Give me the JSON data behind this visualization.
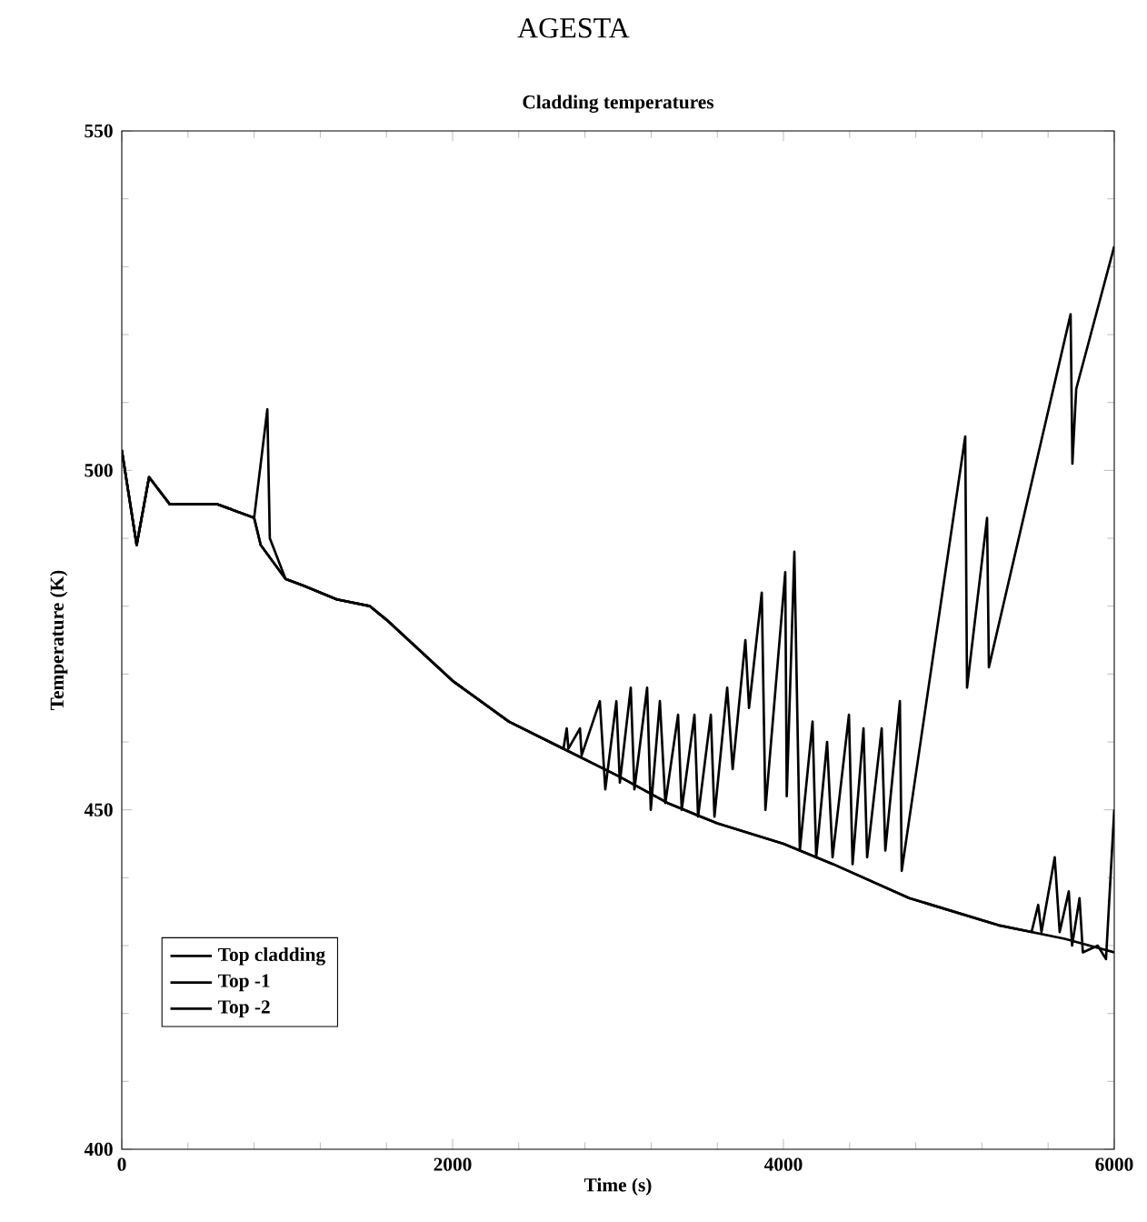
{
  "chart_data": {
    "type": "line",
    "title": "AGESTA",
    "subtitle": "Cladding temperatures",
    "xlabel": "Time (s)",
    "ylabel": "Temperature (K)",
    "xlim": [
      0,
      6000
    ],
    "xticks": [
      0,
      2000,
      4000,
      6000
    ],
    "ylim": [
      400,
      550
    ],
    "yticks": [
      400,
      450,
      500,
      550
    ],
    "legend": "bottom left",
    "line_style": "solid",
    "series": [
      {
        "name": "Top cladding",
        "color": "#000000",
        "x": [
          0,
          90,
          165,
          290,
          580,
          800,
          880,
          895,
          990,
          1100,
          1200,
          1300,
          1500,
          1600,
          2000,
          2340,
          2670,
          2690,
          2700,
          2770,
          2780,
          2890,
          2923,
          2990,
          3011,
          3077,
          3099,
          3176,
          3198,
          3253,
          3286,
          3363,
          3385,
          3462,
          3484,
          3561,
          3583,
          3660,
          3693,
          3770,
          3792,
          3869,
          3891,
          4011,
          4020,
          4066,
          4099,
          4176,
          4198,
          4264,
          4297,
          4396,
          4418,
          4484,
          4506,
          4594,
          4616,
          4704,
          4715,
          5099,
          5110,
          5231,
          5242,
          5736,
          5747,
          5770,
          6000
        ],
        "values": [
          503,
          489,
          499,
          495,
          495,
          493,
          509,
          490,
          484,
          483,
          482,
          481,
          480,
          478,
          469,
          463,
          459,
          462,
          459,
          462,
          458,
          466,
          453,
          466,
          454,
          468,
          453,
          468,
          450,
          466,
          451,
          464,
          450,
          464,
          449,
          464,
          449,
          468,
          456,
          475,
          465,
          482,
          450,
          485,
          452,
          488,
          444,
          463,
          443,
          460,
          443,
          464,
          442,
          462,
          443,
          462,
          444,
          466,
          441,
          505,
          468,
          493,
          471,
          523,
          501,
          512,
          533
        ]
      },
      {
        "name": "Top -1",
        "color": "#000000",
        "x": [
          0,
          90,
          165,
          290,
          580,
          800,
          840,
          990,
          1100,
          1200,
          1300,
          1500,
          1600,
          2000,
          2340,
          2670,
          3000,
          3300,
          3600,
          4000,
          4300,
          4760,
          5300,
          5500,
          5540,
          5560,
          5640,
          5670,
          5725,
          5745,
          5790,
          5810,
          5900,
          5950,
          6000
        ],
        "values": [
          503,
          489,
          499,
          495,
          495,
          493,
          489,
          484,
          483,
          482,
          481,
          480,
          478,
          469,
          463,
          459,
          455,
          451,
          448,
          445,
          442,
          437,
          433,
          432,
          436,
          432,
          443,
          432,
          438,
          430,
          437,
          429,
          430,
          428,
          450
        ]
      },
      {
        "name": "Top -2",
        "color": "#000000",
        "x": [
          0,
          90,
          165,
          290,
          580,
          800,
          840,
          990,
          1100,
          1200,
          1300,
          1500,
          1600,
          2000,
          2340,
          2670,
          3000,
          3300,
          3600,
          4000,
          4300,
          4760,
          5300,
          5700,
          6000
        ],
        "values": [
          503,
          489,
          499,
          495,
          495,
          493,
          489,
          484,
          483,
          482,
          481,
          480,
          478,
          469,
          463,
          459,
          455,
          451,
          448,
          445,
          442,
          437,
          433,
          431,
          429
        ]
      }
    ]
  }
}
